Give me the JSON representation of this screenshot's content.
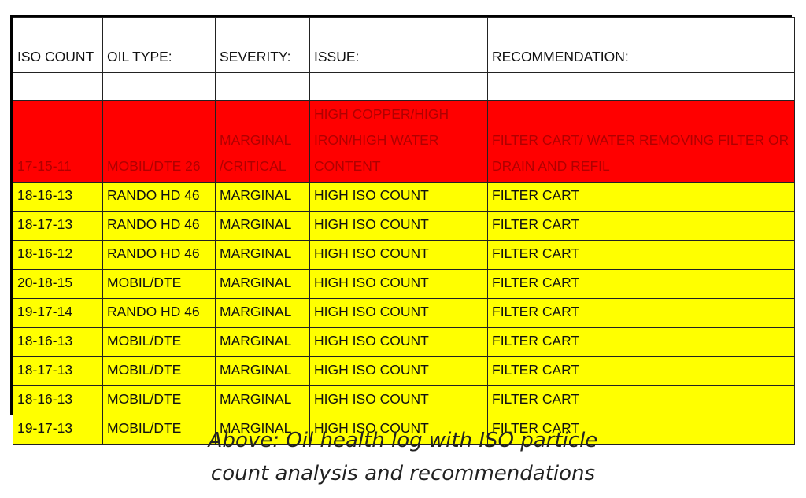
{
  "table": {
    "headers": [
      "ISO COUNT",
      "OIL TYPE:",
      "SEVERITY:",
      "ISSUE:",
      "RECOMMENDATION:"
    ],
    "highlight_row": {
      "color": "#ff0000",
      "cells": [
        "17-15-11",
        "MOBIL/DTE 26",
        "MARGINAL /CRITICAL",
        "HIGH COPPER/HIGH IRON/HIGH WATER CONTENT",
        "FILTER CART/ WATER REMOVING FILTER OR DRAIN AND REFIL"
      ]
    },
    "rows_color": "#ffff00",
    "rows": [
      [
        "18-16-13",
        "RANDO HD 46",
        "MARGINAL",
        "HIGH ISO COUNT",
        "FILTER CART"
      ],
      [
        "18-17-13",
        "RANDO HD 46",
        "MARGINAL",
        "HIGH ISO COUNT",
        "FILTER CART"
      ],
      [
        "18-16-12",
        "RANDO HD 46",
        "MARGINAL",
        "HIGH ISO COUNT",
        "FILTER CART"
      ],
      [
        "20-18-15",
        "MOBIL/DTE",
        "MARGINAL",
        "HIGH ISO COUNT",
        "FILTER CART"
      ],
      [
        "19-17-14",
        "RANDO HD 46",
        "MARGINAL",
        "HIGH ISO COUNT",
        "FILTER CART"
      ],
      [
        "18-16-13",
        "MOBIL/DTE",
        "MARGINAL",
        "HIGH ISO COUNT",
        "FILTER CART"
      ],
      [
        "18-17-13",
        "MOBIL/DTE",
        "MARGINAL",
        "HIGH ISO COUNT",
        "FILTER CART"
      ],
      [
        "18-16-13",
        "MOBIL/DTE",
        "MARGINAL",
        "HIGH ISO COUNT",
        "FILTER CART"
      ],
      [
        "19-17-13",
        "MOBIL/DTE",
        "MARGINAL",
        "HIGH ISO COUNT",
        "FILTER CART"
      ]
    ]
  },
  "caption": {
    "line1": "Above: Oil health log with ISO particle",
    "line2": "count analysis and recommendations"
  }
}
